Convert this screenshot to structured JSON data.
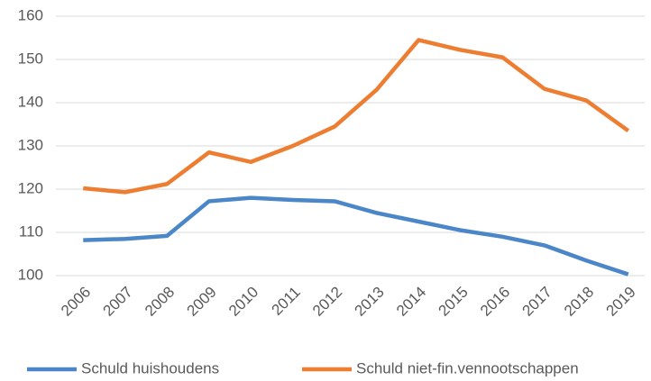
{
  "chart_data": {
    "type": "line",
    "categories": [
      "2006",
      "2007",
      "2008",
      "2009",
      "2010",
      "2011",
      "2012",
      "2013",
      "2014",
      "2015",
      "2016",
      "2017",
      "2018",
      "2019"
    ],
    "series": [
      {
        "name": "Schuld huishoudens",
        "color": "#4a86c8",
        "values": [
          108.2,
          108.5,
          109.2,
          117.2,
          118,
          117.5,
          117.2,
          114.5,
          112.5,
          110.5,
          109,
          107,
          103.5,
          100.3
        ]
      },
      {
        "name": "Schuld niet-fin.vennootschappen",
        "color": "#ed7d31",
        "values": [
          120.2,
          119.3,
          121.2,
          128.5,
          126.3,
          130,
          134.5,
          143,
          154.5,
          152.2,
          150.5,
          143.2,
          140.5,
          133.5
        ]
      }
    ],
    "ylim": [
      100,
      160
    ],
    "yticks": [
      100,
      110,
      120,
      130,
      140,
      150,
      160
    ],
    "grid": true,
    "legend": "bottom"
  }
}
